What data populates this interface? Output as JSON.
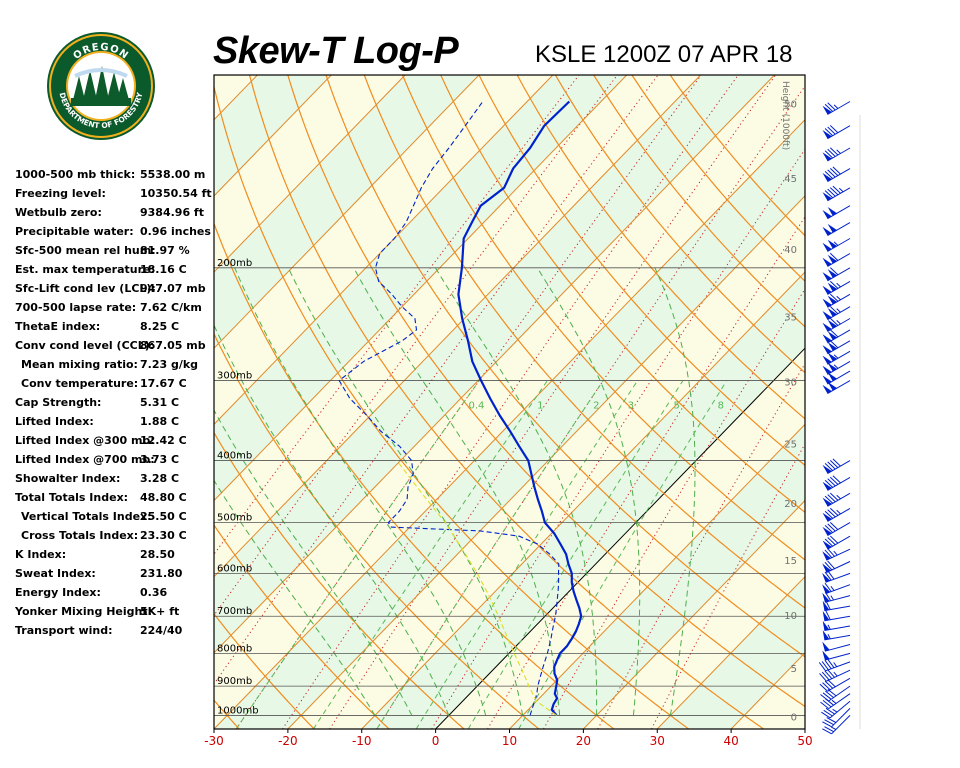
{
  "header": {
    "title": "Skew-T Log-P",
    "station": "KSLE 1200Z 07 APR 18"
  },
  "logo": {
    "top_text": "OREGON",
    "bottom_text": "DEPARTMENT OF FORESTRY",
    "colors": {
      "ring": "#0b5a2c",
      "gold": "#f2b01e",
      "tree": "#0d5a2a"
    }
  },
  "indices": [
    {
      "label": "1000-500 mb thick:",
      "value": "5538.00 m"
    },
    {
      "label": "Freezing level:",
      "value": "10350.54 ft"
    },
    {
      "label": "Wetbulb zero:",
      "value": "9384.96 ft"
    },
    {
      "label": "Precipitable water:",
      "value": "0.96 inches"
    },
    {
      "label": "Sfc-500 mean rel hum:",
      "value": "81.97 %"
    },
    {
      "label": "Est. max temperature:",
      "value": "18.16 C"
    },
    {
      "label": "Sfc-Lift cond lev (LCL):",
      "value": "947.07 mb"
    },
    {
      "label": "700-500 lapse rate:",
      "value": "7.62 C/km"
    },
    {
      "label": "ThetaE index:",
      "value": "8.25 C"
    },
    {
      "label": "Conv cond level (CCL):",
      "value": "867.05 mb"
    },
    {
      "label": "Mean mixing ratio:",
      "value": "7.23 g/kg",
      "indent": true
    },
    {
      "label": "Conv temperature:",
      "value": "17.67 C",
      "indent": true
    },
    {
      "label": "Cap Strength:",
      "value": "5.31 C"
    },
    {
      "label": "Lifted Index:",
      "value": "1.88 C"
    },
    {
      "label": "Lifted Index @300 mb:",
      "value": "12.42 C"
    },
    {
      "label": "Lifted Index @700 mb:",
      "value": "3.73 C"
    },
    {
      "label": "Showalter Index:",
      "value": "3.28 C"
    },
    {
      "label": "Total Totals Index:",
      "value": "48.80 C"
    },
    {
      "label": "Vertical Totals Index:",
      "value": "25.50 C",
      "indent": true
    },
    {
      "label": "Cross Totals Index:",
      "value": "23.30 C",
      "indent": true
    },
    {
      "label": "K Index:",
      "value": "28.50"
    },
    {
      "label": "Sweat Index:",
      "value": "231.80"
    },
    {
      "label": "Energy Index:",
      "value": "0.36"
    },
    {
      "label": "Yonker Mixing Height:",
      "value": "5K+ ft"
    },
    {
      "label": "Transport wind:",
      "value": "224/40"
    }
  ],
  "chart_data": {
    "type": "line",
    "title": "Skew-T Log-P",
    "xlabel": "",
    "ylabel": "",
    "xlim": [
      -30,
      50
    ],
    "ylim_mb": [
      1050,
      100
    ],
    "x_ticks": [
      -30,
      -20,
      -10,
      0,
      10,
      20,
      30,
      40,
      50
    ],
    "pressure_levels": [
      {
        "p": 1000,
        "label": "1000mb"
      },
      {
        "p": 900,
        "label": "900mb"
      },
      {
        "p": 800,
        "label": "800mb"
      },
      {
        "p": 700,
        "label": "700mb"
      },
      {
        "p": 600,
        "label": "600mb"
      },
      {
        "p": 500,
        "label": "500mb"
      },
      {
        "p": 400,
        "label": "400mb"
      },
      {
        "p": 300,
        "label": "300mb"
      },
      {
        "p": 200,
        "label": "200mb"
      }
    ],
    "height_axis": {
      "title": "Height (1000ft)",
      "ticks": [
        {
          "ft": 0,
          "label": "0"
        },
        {
          "ft": 5,
          "label": "5"
        },
        {
          "ft": 10,
          "label": "10"
        },
        {
          "ft": 15,
          "label": "15"
        },
        {
          "ft": 20,
          "label": "20"
        },
        {
          "ft": 25,
          "label": "25"
        },
        {
          "ft": 30,
          "label": "30"
        },
        {
          "ft": 35,
          "label": "35"
        },
        {
          "ft": 40,
          "label": "40"
        },
        {
          "ft": 45,
          "label": "45"
        },
        {
          "ft": 50,
          "label": "50"
        }
      ]
    },
    "mixing_ratio_labels": [
      "0.4",
      "1",
      "2",
      "3",
      "5",
      "8"
    ],
    "isotherms": [
      -110,
      -100,
      -90,
      -80,
      -70,
      -60,
      -50,
      -40,
      -30,
      -20,
      -10,
      0,
      10,
      20,
      30,
      40,
      50
    ],
    "dry_adiabats": [
      -30,
      -20,
      -10,
      0,
      10,
      20,
      30,
      40,
      50,
      60,
      70,
      80,
      90,
      100,
      110,
      120,
      130,
      140,
      150
    ],
    "moist_adiabats": [
      -10,
      -5,
      0,
      5,
      10,
      15,
      20,
      25,
      30
    ],
    "mixing_ratios": [
      0.4,
      1,
      2,
      3,
      5,
      8
    ],
    "series": [
      {
        "name": "temperature",
        "color": "#0022cc",
        "points": [
          [
            1000,
            14.6
          ],
          [
            980,
            13.2
          ],
          [
            960,
            12.7
          ],
          [
            940,
            12.4
          ],
          [
            925,
            11.5
          ],
          [
            900,
            10.7
          ],
          [
            880,
            10.0
          ],
          [
            860,
            8.8
          ],
          [
            840,
            7.9
          ],
          [
            820,
            7.4
          ],
          [
            800,
            6.9
          ],
          [
            780,
            6.9
          ],
          [
            760,
            6.6
          ],
          [
            740,
            6.2
          ],
          [
            720,
            5.6
          ],
          [
            700,
            4.9
          ],
          [
            680,
            3.6
          ],
          [
            660,
            2.1
          ],
          [
            640,
            0.6
          ],
          [
            620,
            -0.8
          ],
          [
            600,
            -2.0
          ],
          [
            580,
            -3.7
          ],
          [
            560,
            -5.3
          ],
          [
            540,
            -7.4
          ],
          [
            520,
            -9.6
          ],
          [
            500,
            -12.3
          ],
          [
            480,
            -14.2
          ],
          [
            460,
            -16.3
          ],
          [
            440,
            -18.4
          ],
          [
            420,
            -20.5
          ],
          [
            400,
            -22.7
          ],
          [
            380,
            -25.8
          ],
          [
            360,
            -29.0
          ],
          [
            340,
            -32.5
          ],
          [
            320,
            -36.0
          ],
          [
            300,
            -39.6
          ],
          [
            280,
            -43.3
          ],
          [
            260,
            -46.6
          ],
          [
            240,
            -50.3
          ],
          [
            220,
            -54.0
          ],
          [
            200,
            -57.0
          ],
          [
            180,
            -60.6
          ],
          [
            170,
            -61.6
          ],
          [
            160,
            -62.6
          ],
          [
            150,
            -61.8
          ],
          [
            140,
            -63.1
          ],
          [
            130,
            -63.5
          ],
          [
            120,
            -64.5
          ],
          [
            110,
            -64.3
          ]
        ]
      },
      {
        "name": "dewpoint",
        "color": "#0022cc",
        "dashed": true,
        "points": [
          [
            1000,
            11.0
          ],
          [
            980,
            10.5
          ],
          [
            960,
            10.0
          ],
          [
            940,
            9.5
          ],
          [
            920,
            8.9
          ],
          [
            900,
            8.2
          ],
          [
            880,
            7.6
          ],
          [
            860,
            7.0
          ],
          [
            840,
            6.4
          ],
          [
            820,
            5.8
          ],
          [
            800,
            5.2
          ],
          [
            780,
            4.5
          ],
          [
            760,
            3.8
          ],
          [
            740,
            3.0
          ],
          [
            720,
            2.2
          ],
          [
            700,
            1.4
          ],
          [
            680,
            0.5
          ],
          [
            660,
            -0.5
          ],
          [
            640,
            -1.5
          ],
          [
            620,
            -2.6
          ],
          [
            600,
            -3.8
          ],
          [
            580,
            -5.0
          ],
          [
            560,
            -7.5
          ],
          [
            540,
            -10.5
          ],
          [
            525,
            -14.0
          ],
          [
            515,
            -20.0
          ],
          [
            508,
            -32.5
          ],
          [
            500,
            -33.5
          ],
          [
            480,
            -33.5
          ],
          [
            460,
            -34.0
          ],
          [
            440,
            -35.5
          ],
          [
            420,
            -36.5
          ],
          [
            400,
            -38.5
          ],
          [
            380,
            -42.0
          ],
          [
            360,
            -46.5
          ],
          [
            340,
            -50.5
          ],
          [
            320,
            -55.0
          ],
          [
            300,
            -58.8
          ],
          [
            280,
            -58.0
          ],
          [
            260,
            -55.5
          ],
          [
            250,
            -55.0
          ],
          [
            240,
            -56.7
          ],
          [
            230,
            -60.0
          ],
          [
            220,
            -63.0
          ],
          [
            210,
            -66.5
          ],
          [
            200,
            -68.7
          ],
          [
            190,
            -70.0
          ],
          [
            180,
            -70.0
          ],
          [
            170,
            -70.5
          ],
          [
            160,
            -71.7
          ],
          [
            150,
            -73.0
          ],
          [
            140,
            -74.0
          ],
          [
            130,
            -74.5
          ],
          [
            120,
            -75.2
          ],
          [
            110,
            -76.0
          ]
        ]
      },
      {
        "name": "parcel",
        "color": "#dddd22",
        "dashed": true,
        "points": [
          [
            1000,
            14.6
          ],
          [
            950,
            10.0
          ],
          [
            900,
            7.0
          ],
          [
            850,
            4.0
          ],
          [
            800,
            0.7
          ],
          [
            750,
            -2.7
          ],
          [
            700,
            -6.3
          ],
          [
            650,
            -10.3
          ],
          [
            600,
            -14.8
          ],
          [
            550,
            -20.0
          ],
          [
            500,
            -25.8
          ],
          [
            450,
            -32.8
          ],
          [
            400,
            -40.5
          ]
        ]
      }
    ],
    "wind_barbs": [
      {
        "p": 1000,
        "dir": 225,
        "spd": 25
      },
      {
        "p": 975,
        "dir": 225,
        "spd": 30
      },
      {
        "p": 950,
        "dir": 230,
        "spd": 35
      },
      {
        "p": 925,
        "dir": 235,
        "spd": 35
      },
      {
        "p": 900,
        "dir": 235,
        "spd": 40
      },
      {
        "p": 875,
        "dir": 240,
        "spd": 40
      },
      {
        "p": 850,
        "dir": 245,
        "spd": 45
      },
      {
        "p": 825,
        "dir": 250,
        "spd": 45
      },
      {
        "p": 800,
        "dir": 255,
        "spd": 50
      },
      {
        "p": 775,
        "dir": 255,
        "spd": 50
      },
      {
        "p": 750,
        "dir": 260,
        "spd": 55
      },
      {
        "p": 725,
        "dir": 260,
        "spd": 55
      },
      {
        "p": 700,
        "dir": 260,
        "spd": 60
      },
      {
        "p": 675,
        "dir": 260,
        "spd": 60
      },
      {
        "p": 650,
        "dir": 255,
        "spd": 65
      },
      {
        "p": 625,
        "dir": 250,
        "spd": 65
      },
      {
        "p": 600,
        "dir": 250,
        "spd": 70
      },
      {
        "p": 575,
        "dir": 245,
        "spd": 70
      },
      {
        "p": 550,
        "dir": 245,
        "spd": 75
      },
      {
        "p": 525,
        "dir": 240,
        "spd": 80
      },
      {
        "p": 500,
        "dir": 240,
        "spd": 80
      },
      {
        "p": 475,
        "dir": 240,
        "spd": 85
      },
      {
        "p": 450,
        "dir": 240,
        "spd": 85
      },
      {
        "p": 425,
        "dir": 240,
        "spd": 90
      },
      {
        "p": 400,
        "dir": 240,
        "spd": 90
      },
      {
        "p": 300,
        "dir": 240,
        "spd": 100
      },
      {
        "p": 290,
        "dir": 240,
        "spd": 100
      },
      {
        "p": 280,
        "dir": 240,
        "spd": 105
      },
      {
        "p": 270,
        "dir": 240,
        "spd": 105
      },
      {
        "p": 260,
        "dir": 240,
        "spd": 110
      },
      {
        "p": 250,
        "dir": 240,
        "spd": 110
      },
      {
        "p": 240,
        "dir": 240,
        "spd": 115
      },
      {
        "p": 230,
        "dir": 240,
        "spd": 115
      },
      {
        "p": 220,
        "dir": 240,
        "spd": 115
      },
      {
        "p": 210,
        "dir": 240,
        "spd": 115
      },
      {
        "p": 200,
        "dir": 240,
        "spd": 110
      },
      {
        "p": 190,
        "dir": 240,
        "spd": 110
      },
      {
        "p": 180,
        "dir": 240,
        "spd": 105
      },
      {
        "p": 170,
        "dir": 240,
        "spd": 100
      },
      {
        "p": 160,
        "dir": 240,
        "spd": 100
      },
      {
        "p": 150,
        "dir": 240,
        "spd": 95
      },
      {
        "p": 140,
        "dir": 240,
        "spd": 90
      },
      {
        "p": 130,
        "dir": 240,
        "spd": 85
      },
      {
        "p": 120,
        "dir": 240,
        "spd": 80
      },
      {
        "p": 110,
        "dir": 240,
        "spd": 75
      }
    ],
    "colors": {
      "background_band_a": "#fcfce4",
      "background_band_b": "#e8f8e6",
      "isotherm": "#e08a2a",
      "dry_adiabat": "#f08c1e",
      "moist_adiabat": "#4caf4c",
      "mixing_ratio": "#58b858",
      "isohume_dotted": "#cc2222",
      "isobar": "#555555",
      "zero_isotherm": "#000000",
      "sounding": "#0022cc",
      "parcel": "#dddd22",
      "barb": "#0022cc",
      "x_tick_label": "#cc0000",
      "height_label": "#707070"
    }
  }
}
